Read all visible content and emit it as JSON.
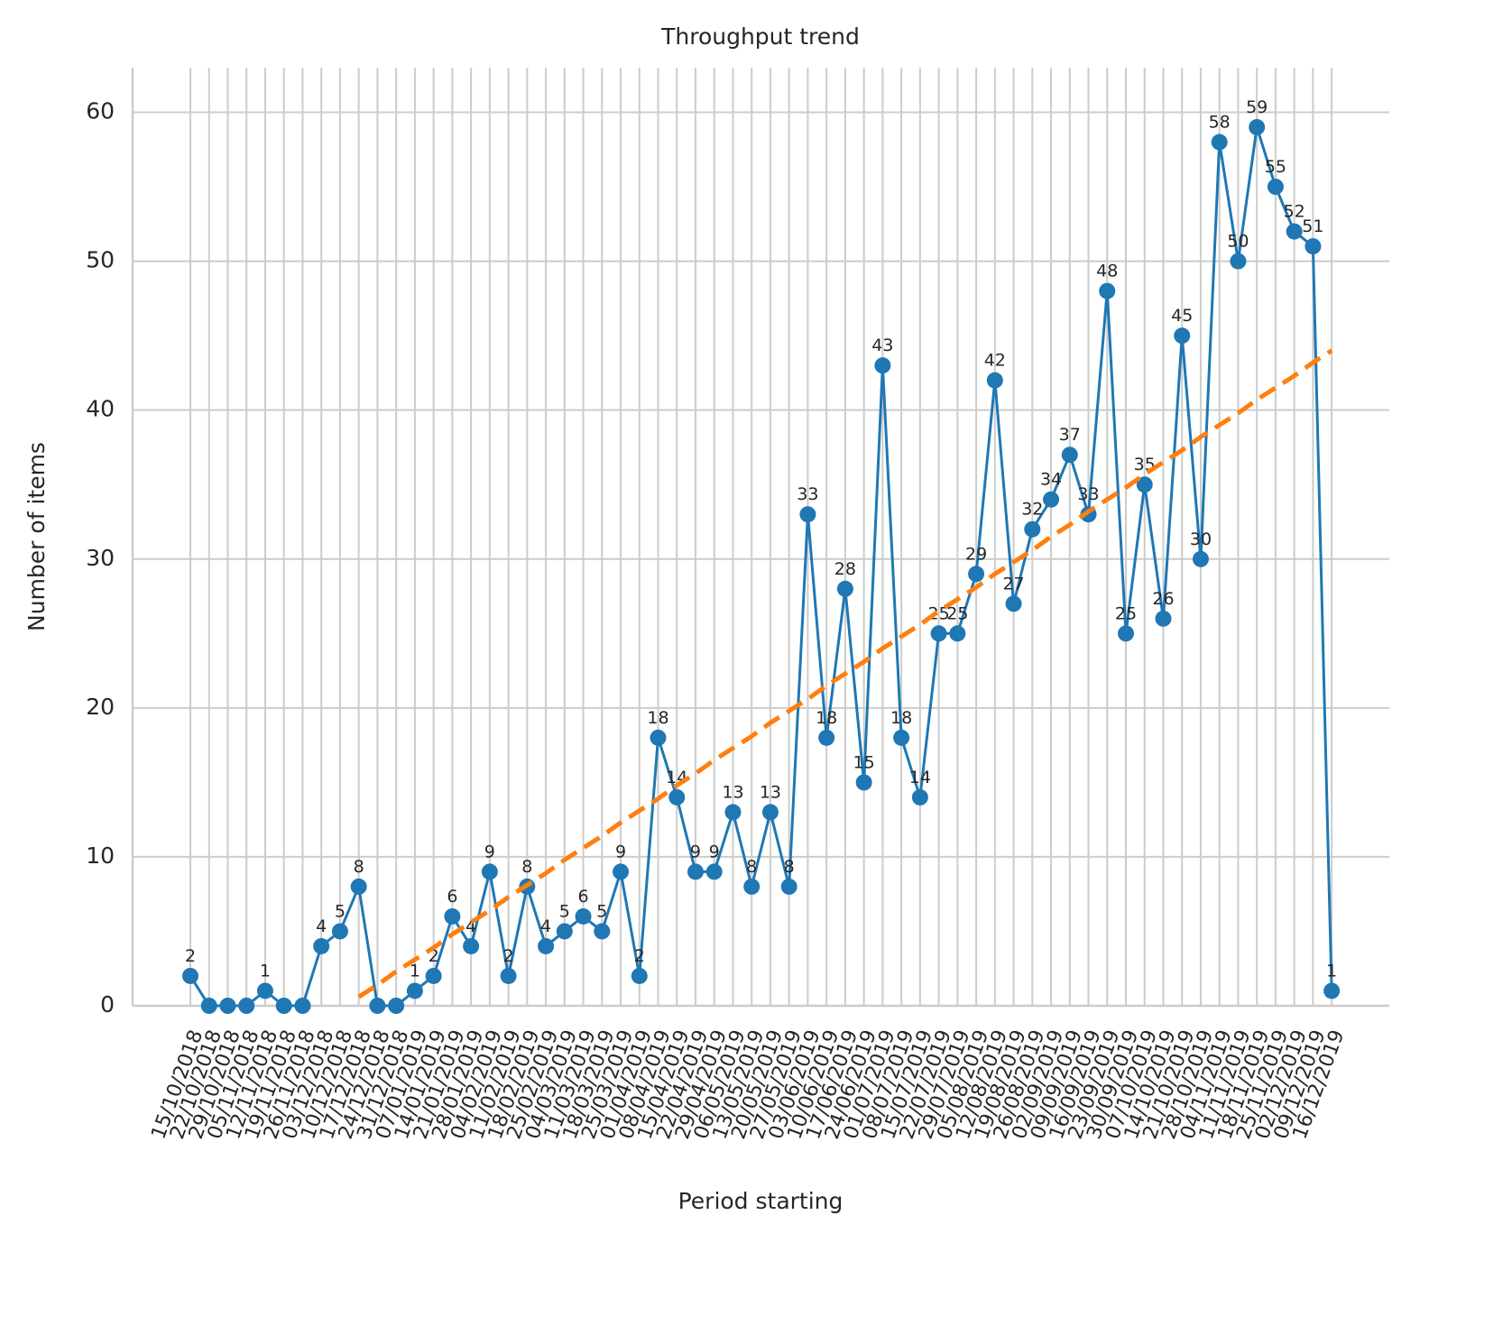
{
  "chart_data": {
    "type": "line",
    "title": "Throughput trend",
    "x_label": "Period starting",
    "y_label": "Number of items",
    "categories": [
      "15/10/2018",
      "22/10/2018",
      "29/10/2018",
      "05/11/2018",
      "12/11/2018",
      "19/11/2018",
      "26/11/2018",
      "03/12/2018",
      "10/12/2018",
      "17/12/2018",
      "24/12/2018",
      "31/12/2018",
      "07/01/2019",
      "14/01/2019",
      "21/01/2019",
      "28/01/2019",
      "04/02/2019",
      "11/02/2019",
      "18/02/2019",
      "25/02/2019",
      "04/03/2019",
      "11/03/2019",
      "18/03/2019",
      "25/03/2019",
      "01/04/2019",
      "08/04/2019",
      "15/04/2019",
      "22/04/2019",
      "29/04/2019",
      "06/05/2019",
      "13/05/2019",
      "20/05/2019",
      "27/05/2019",
      "03/06/2019",
      "10/06/2019",
      "17/06/2019",
      "24/06/2019",
      "01/07/2019",
      "08/07/2019",
      "15/07/2019",
      "22/07/2019",
      "29/07/2019",
      "05/08/2019",
      "12/08/2019",
      "19/08/2019",
      "26/08/2019",
      "02/09/2019",
      "09/09/2019",
      "16/09/2019",
      "23/09/2019",
      "30/09/2019",
      "07/10/2019",
      "14/10/2019",
      "21/10/2019",
      "28/10/2019",
      "04/11/2019",
      "11/11/2019",
      "18/11/2019",
      "25/11/2019",
      "02/12/2019",
      "09/12/2019",
      "16/12/2019"
    ],
    "series": [
      {
        "color": "#1f77b4",
        "style": "solid",
        "markers": true,
        "values": [
          2,
          0,
          0,
          0,
          1,
          0,
          0,
          4,
          5,
          8,
          0,
          0,
          1,
          2,
          6,
          4,
          9,
          2,
          8,
          4,
          5,
          6,
          5,
          9,
          2,
          18,
          14,
          9,
          9,
          13,
          8,
          13,
          8,
          33,
          18,
          28,
          15,
          43,
          18,
          14,
          25,
          25,
          29,
          42,
          27,
          32,
          34,
          37,
          33,
          48,
          25,
          35,
          26,
          45,
          30,
          58,
          50,
          59,
          55,
          52,
          51,
          1
        ],
        "value_labels": [
          "2",
          null,
          null,
          null,
          "1",
          null,
          null,
          "4",
          "5",
          "8",
          null,
          null,
          "1",
          "2",
          "6",
          "4",
          "9",
          "2",
          "8",
          "4",
          "5",
          "6",
          "5",
          "9",
          "2",
          "18",
          "14",
          "9",
          "9",
          "13",
          "8",
          "13",
          "8",
          "33",
          "18",
          "28",
          "15",
          "43",
          "18",
          "14",
          "25",
          "25",
          "29",
          "42",
          "27",
          "32",
          "34",
          "37",
          "33",
          "48",
          "25",
          "35",
          "26",
          "45",
          "30",
          "58",
          "50",
          "59",
          "55",
          "52",
          "51",
          "1"
        ]
      },
      {
        "color": "#ff7f0e",
        "style": "dashed",
        "markers": false,
        "values": [
          null,
          null,
          null,
          null,
          null,
          null,
          null,
          null,
          null,
          0.6,
          1.4,
          2.3,
          3.1,
          3.9,
          4.8,
          5.6,
          6.4,
          7.3,
          8.1,
          8.9,
          9.8,
          10.6,
          11.4,
          12.3,
          13.1,
          13.9,
          14.8,
          15.6,
          16.5,
          17.3,
          18.1,
          19.0,
          19.8,
          20.6,
          21.5,
          22.3,
          23.1,
          24.0,
          24.8,
          25.6,
          26.5,
          27.3,
          28.1,
          29.0,
          29.8,
          30.6,
          31.5,
          32.3,
          33.2,
          34.0,
          34.8,
          35.7,
          36.5,
          37.3,
          38.2,
          39.0,
          39.8,
          40.7,
          41.5,
          42.3,
          43.2,
          44.0
        ]
      }
    ],
    "ylim": [
      0,
      63
    ],
    "yticks": [
      0,
      10,
      20,
      30,
      40,
      50,
      60
    ],
    "grid": true
  }
}
